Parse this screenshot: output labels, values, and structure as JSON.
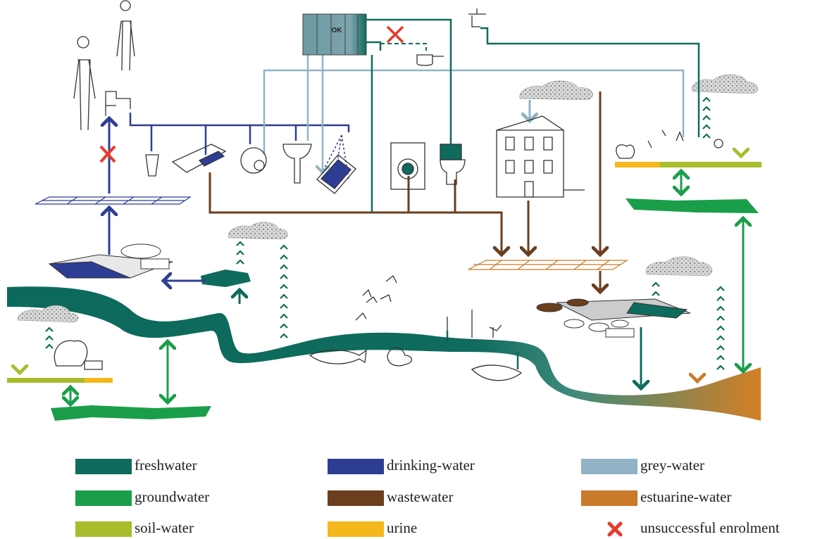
{
  "tank_label": "OK",
  "legend": [
    {
      "label": "freshwater",
      "color": "#0f6b5d"
    },
    {
      "label": "drinking-water",
      "color": "#2e3d94"
    },
    {
      "label": "grey-water",
      "color": "#92b3c6"
    },
    {
      "label": "groundwater",
      "color": "#1a9e4a"
    },
    {
      "label": "wastewater",
      "color": "#6b3e1d"
    },
    {
      "label": "estuarine-water",
      "color": "#c97a2a"
    },
    {
      "label": "soil-water",
      "color": "#a8bc2c"
    },
    {
      "label": "urine",
      "color": "#f5b81c"
    },
    {
      "label": "unsuccessful enrolment",
      "color": "#e8392b",
      "marker": "cross"
    }
  ]
}
